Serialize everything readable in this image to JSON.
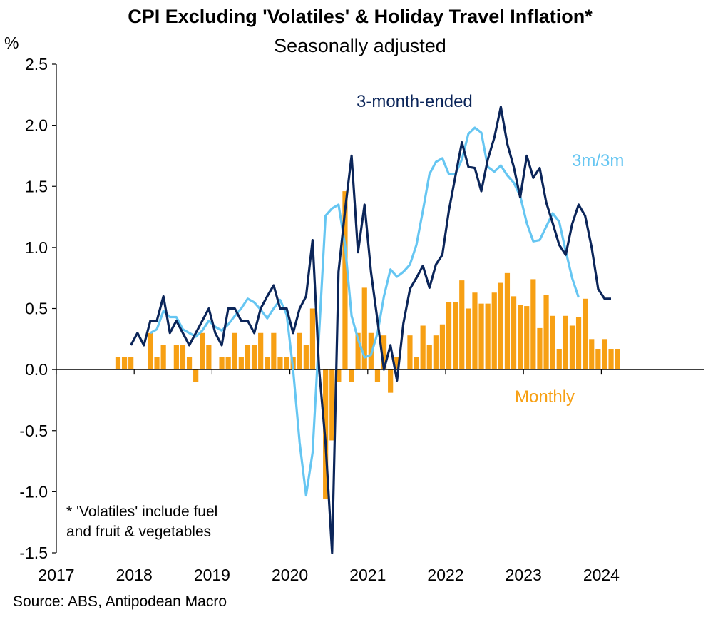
{
  "colors": {
    "monthly": "#F7A014",
    "three_month_ended": "#0B2559",
    "three_m_three_m": "#66C6F2",
    "axis": "#000000"
  },
  "chart_data": {
    "type": "bar+line",
    "title": "CPI Excluding 'Volatiles' & Holiday Travel Inflation*",
    "subtitle": "Seasonally adjusted",
    "ylabel": "%",
    "ylim": [
      -1.5,
      2.5
    ],
    "yticks": [
      "2.5",
      "2.0",
      "1.5",
      "1.0",
      "0.5",
      "0.0",
      "-0.5",
      "-1.0",
      "-1.5"
    ],
    "xlim": [
      "2017-01",
      "2024-12"
    ],
    "xticks": [
      "2017",
      "2018",
      "2019",
      "2020",
      "2021",
      "2022",
      "2023",
      "2024"
    ],
    "grid": false,
    "annotations": [
      {
        "text": "3-month-ended",
        "series": "three_month_ended"
      },
      {
        "text": "3m/3m",
        "series": "three_m_three_m"
      },
      {
        "text": "Monthly",
        "series": "monthly"
      }
    ],
    "footnote_lines": [
      "* 'Volatiles' include fuel",
      "and fruit & vegetables"
    ],
    "source": "Source: ABS, Antipodean Macro",
    "monthly": {
      "start": "2017-10",
      "values": [
        0.1,
        0.1,
        0.1,
        0.0,
        0.0,
        0.3,
        0.1,
        0.2,
        0.0,
        0.2,
        0.2,
        0.1,
        -0.1,
        0.3,
        0.2,
        0.0,
        0.1,
        0.1,
        0.3,
        0.1,
        0.2,
        0.2,
        0.3,
        0.1,
        0.3,
        0.1,
        0.1,
        0.1,
        0.3,
        0.2,
        0.5,
        0.0,
        -1.06,
        -0.58,
        -0.1,
        1.46,
        -0.1,
        0.3,
        0.67,
        0.3,
        -0.1,
        0.28,
        -0.19,
        0.1,
        0.0,
        0.28,
        0.1,
        0.36,
        0.2,
        0.28,
        0.37,
        0.55,
        0.55,
        0.73,
        0.5,
        0.63,
        0.54,
        0.54,
        0.63,
        0.71,
        0.79,
        0.6,
        0.53,
        0.52,
        0.74,
        0.34,
        0.61,
        0.44,
        0.17,
        0.44,
        0.36,
        0.43,
        0.58,
        0.25,
        0.17,
        0.25,
        0.17,
        0.17
      ]
    },
    "three_month_ended": {
      "start": "2017-12",
      "values": [
        0.2,
        0.3,
        0.2,
        0.4,
        0.4,
        0.6,
        0.3,
        0.4,
        0.3,
        0.2,
        0.3,
        0.4,
        0.5,
        0.3,
        0.2,
        0.5,
        0.5,
        0.4,
        0.4,
        0.3,
        0.5,
        0.6,
        0.69,
        0.5,
        0.5,
        0.3,
        0.5,
        0.6,
        1.06,
        0.0,
        -0.6,
        -1.5,
        0.8,
        1.3,
        1.75,
        0.96,
        1.35,
        0.8,
        0.4,
        0.0,
        0.2,
        -0.09,
        0.38,
        0.66,
        0.75,
        0.85,
        0.67,
        0.86,
        0.94,
        1.3,
        1.58,
        1.86,
        1.66,
        1.65,
        1.46,
        1.72,
        1.9,
        2.15,
        1.85,
        1.66,
        1.41,
        1.75,
        1.57,
        1.65,
        1.37,
        1.2,
        1.02,
        0.94,
        1.19,
        1.35,
        1.26,
        1.0,
        0.66,
        0.58,
        0.58
      ]
    },
    "three_m_three_m": {
      "start": "2018-03",
      "values": [
        0.3,
        0.33,
        0.48,
        0.43,
        0.43,
        0.33,
        0.3,
        0.27,
        0.32,
        0.4,
        0.35,
        0.32,
        0.37,
        0.44,
        0.5,
        0.58,
        0.55,
        0.49,
        0.42,
        0.5,
        0.57,
        0.45,
        0.0,
        -0.6,
        -1.03,
        -0.68,
        0.3,
        1.26,
        1.32,
        1.35,
        1.02,
        0.44,
        0.25,
        0.1,
        0.12,
        0.3,
        0.6,
        0.82,
        0.76,
        0.8,
        0.86,
        1.02,
        1.3,
        1.6,
        1.7,
        1.73,
        1.6,
        1.6,
        1.72,
        1.93,
        1.98,
        1.94,
        1.66,
        1.62,
        1.67,
        1.59,
        1.53,
        1.42,
        1.2,
        1.05,
        1.06,
        1.17,
        1.28,
        1.21,
        0.97,
        0.75,
        0.59
      ]
    }
  }
}
